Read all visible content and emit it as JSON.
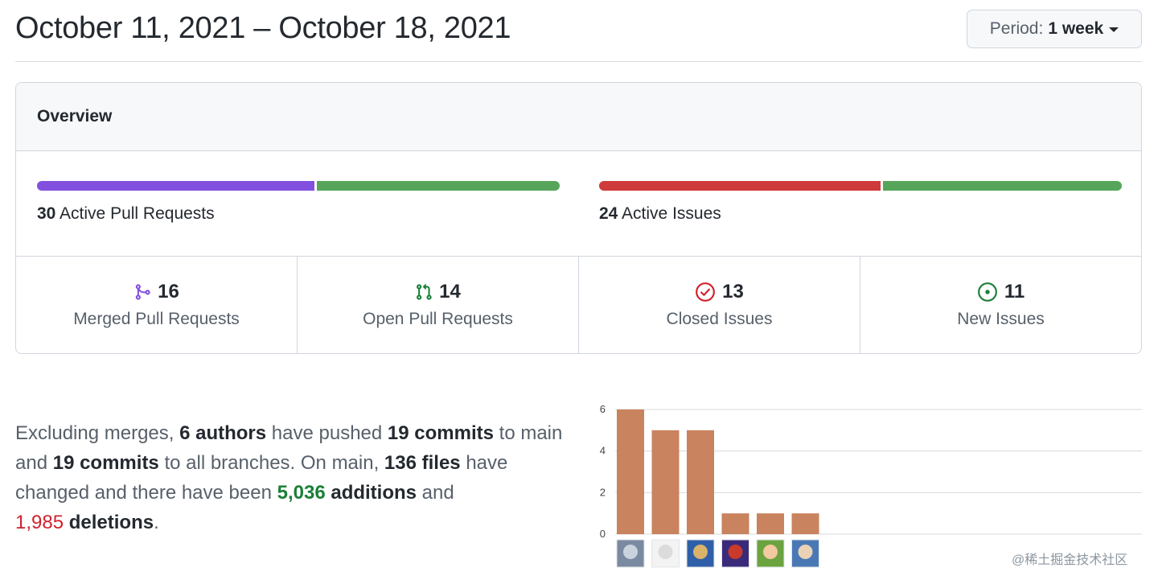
{
  "header": {
    "title": "October 11, 2021 – October 18, 2021",
    "period_label": "Period:",
    "period_value": "1 week"
  },
  "overview": {
    "title": "Overview",
    "pull_requests": {
      "count": "30",
      "label": "Active Pull Requests",
      "merged_fraction": 0.5333,
      "colors": {
        "merged": "#8250df",
        "open": "#57a55a"
      }
    },
    "issues": {
      "count": "24",
      "label": "Active Issues",
      "closed_fraction": 0.5417,
      "colors": {
        "closed": "#cf3a3a",
        "new": "#57a55a"
      }
    },
    "stats": [
      {
        "icon": "merge-icon",
        "count": "16",
        "label": "Merged Pull Requests",
        "color": "#8250df"
      },
      {
        "icon": "pull-request-icon",
        "count": "14",
        "label": "Open Pull Requests",
        "color": "#1a7f37"
      },
      {
        "icon": "issue-closed-icon",
        "count": "13",
        "label": "Closed Issues",
        "color": "#cf222e"
      },
      {
        "icon": "issue-opened-icon",
        "count": "11",
        "label": "New Issues",
        "color": "#1a7f37"
      }
    ]
  },
  "summary": {
    "p1": "Excluding merges, ",
    "authors": "6 authors",
    "p2": " have pushed ",
    "commits_main": "19 commits",
    "p3": " to main and ",
    "commits_all": "19 commits",
    "p4": " to all branches. On main, ",
    "files": "136 files",
    "p5": " have changed and there have been ",
    "additions_num": "5,036",
    "additions_word": " additions",
    "p6": " and ",
    "deletions_num": "1,985",
    "deletions_word": " deletions",
    "p7": "."
  },
  "chart_data": {
    "type": "bar",
    "categories": [
      "author-1",
      "author-2",
      "author-3",
      "author-4",
      "author-5",
      "author-6"
    ],
    "values": [
      6,
      5,
      5,
      1,
      1,
      1
    ],
    "ylim": [
      0,
      6
    ],
    "yticks": [
      0,
      2,
      4,
      6
    ],
    "bar_color": "#c9835e",
    "grid": true
  },
  "watermark": "@稀土掘金技术社区"
}
